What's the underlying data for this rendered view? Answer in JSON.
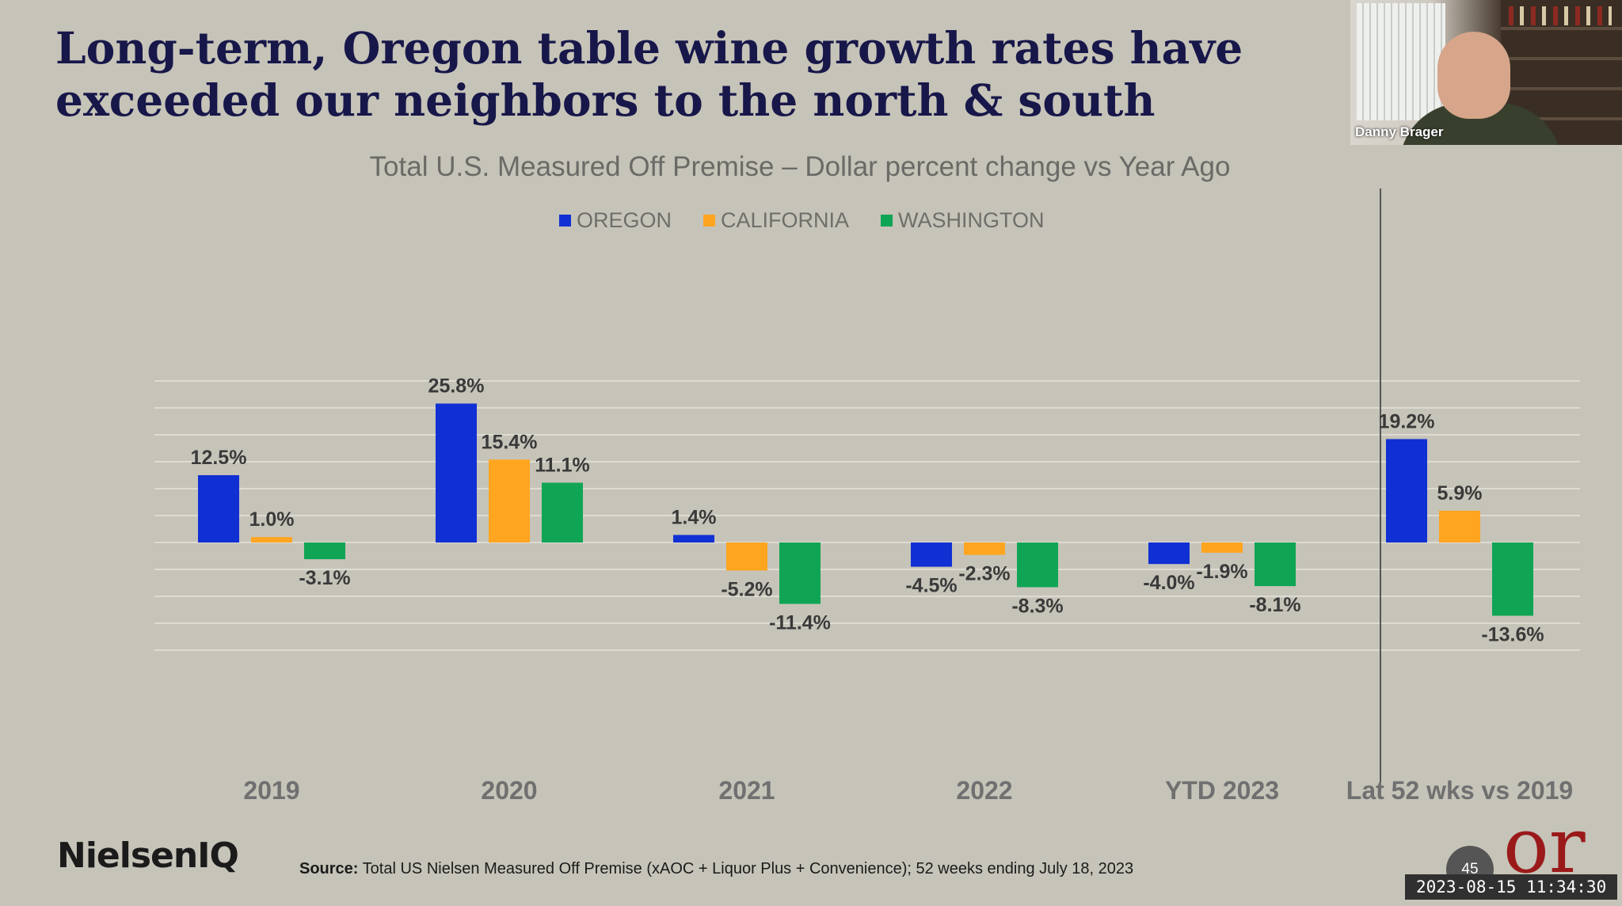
{
  "slide": {
    "title_line1": "Long-term, Oregon table wine growth rates have",
    "title_line2": "exceeded our neighbors to the north & south"
  },
  "webcam": {
    "participant_name": "Danny Brager"
  },
  "footer": {
    "logo": "NielsenIQ",
    "source_label": "Source:",
    "source_text": "Total US Nielsen Measured Off Premise (xAOC + Liquor Plus + Convenience); 52 weeks ending July 18, 2023",
    "page_number": "45",
    "brand_mark": "or",
    "timestamp": "2023-08-15 11:34:30"
  },
  "chart_data": {
    "type": "bar",
    "title": "Total U.S. Measured Off Premise – Dollar percent change vs Year Ago",
    "categories": [
      "2019",
      "2020",
      "2021",
      "2022",
      "YTD 2023",
      "Lat 52 wks vs 2019"
    ],
    "series": [
      {
        "name": "OREGON",
        "color": "#1030d4",
        "values": [
          12.5,
          25.8,
          1.4,
          -4.5,
          -4.0,
          19.2
        ],
        "labels": [
          "12.5%",
          "25.8%",
          "1.4%",
          "-4.5%",
          "-4.0%",
          "19.2%"
        ]
      },
      {
        "name": "CALIFORNIA",
        "color": "#ffa51f",
        "values": [
          1.0,
          15.4,
          -5.2,
          -2.3,
          -1.9,
          5.9
        ],
        "labels": [
          "1.0%",
          "15.4%",
          "-5.2%",
          "-2.3%",
          "-1.9%",
          "5.9%"
        ]
      },
      {
        "name": "WASHINGTON",
        "color": "#10a555",
        "values": [
          -3.1,
          11.1,
          -11.4,
          -8.3,
          -8.1,
          -13.6
        ],
        "labels": [
          "-3.1%",
          "11.1%",
          "-11.4%",
          "-8.3%",
          "-8.1%",
          "-13.6%"
        ]
      }
    ],
    "ylim": [
      -20,
      30
    ],
    "grid": true,
    "legend_position": "top-center",
    "divider_before_category": "Lat 52 wks vs 2019"
  }
}
